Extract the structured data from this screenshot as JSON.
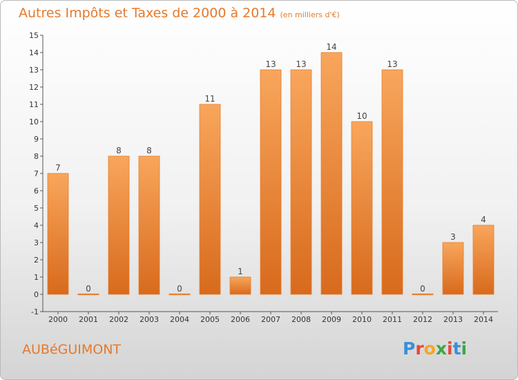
{
  "title": "Autres Impôts et Taxes de 2000 à 2014",
  "title_unit": "(en milliers d'€)",
  "commune": "AUBéGUIMONT",
  "logo": {
    "text": "Proxiti",
    "letter_colors": [
      "#3a8fd8",
      "#e8463a",
      "#f5a623",
      "#39a845",
      "#e8463a",
      "#3a8fd8",
      "#39a845"
    ]
  },
  "colors": {
    "title": "#e5792b",
    "bar_top": "#f8a65c",
    "bar_bottom": "#d86a1c",
    "bar_edge": "#e67d2c"
  },
  "chart_data": {
    "type": "bar",
    "title": "Autres Impôts et Taxes de 2000 à 2014",
    "subtitle": "(en milliers d'€)",
    "categories": [
      "2000",
      "2001",
      "2002",
      "2003",
      "2004",
      "2005",
      "2006",
      "2007",
      "2008",
      "2009",
      "2010",
      "2011",
      "2012",
      "2013",
      "2014"
    ],
    "values": [
      7,
      0,
      8,
      8,
      0,
      11,
      1,
      13,
      13,
      14,
      10,
      13,
      0,
      3,
      4
    ],
    "yticks": [
      -1,
      0,
      1,
      2,
      3,
      4,
      5,
      6,
      7,
      8,
      9,
      10,
      11,
      12,
      13,
      14,
      15
    ],
    "ylim": [
      -1,
      15
    ],
    "grid": false,
    "data_labels": true
  }
}
